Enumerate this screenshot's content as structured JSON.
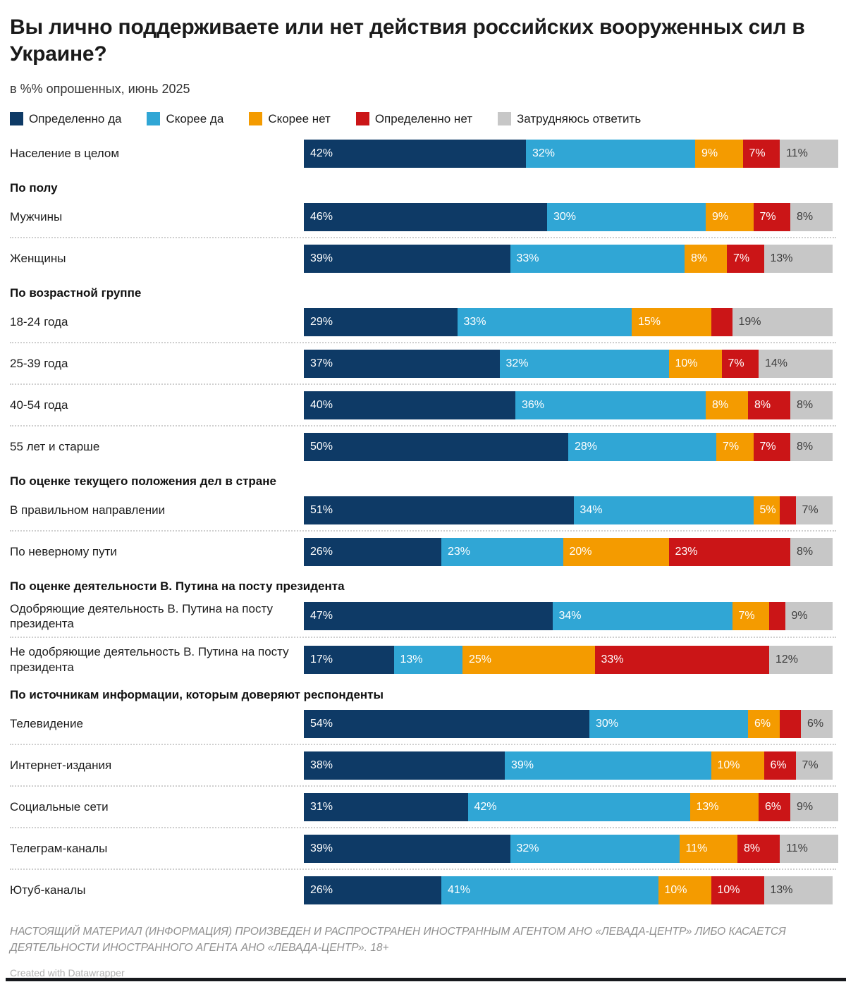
{
  "header": {
    "title": "Вы лично поддерживаете или нет действия российских вооруженных сил в Украине?",
    "subtitle": "в %% опрошенных, июнь 2025"
  },
  "legend": {
    "items": [
      {
        "label": "Определенно да",
        "color": "#0e3a66"
      },
      {
        "label": "Скорее да",
        "color": "#30a6d5"
      },
      {
        "label": "Скорее нет",
        "color": "#f49b00"
      },
      {
        "label": "Определенно нет",
        "color": "#cb1517"
      },
      {
        "label": "Затрудняюсь ответить",
        "color": "#c7c7c7"
      }
    ]
  },
  "chart_data": {
    "type": "bar",
    "variant": "stacked-horizontal",
    "unit": "%",
    "xlim": [
      0,
      100
    ],
    "value_label_min": 5,
    "series": [
      "Определенно да",
      "Скорее да",
      "Скорее нет",
      "Определенно нет",
      "Затрудняюсь ответить"
    ],
    "series_colors": [
      "#0e3a66",
      "#30a6d5",
      "#f49b00",
      "#cb1517",
      "#c7c7c7"
    ],
    "groups": [
      {
        "header": "",
        "rows": [
          {
            "label": "Население в целом",
            "values": [
              42,
              32,
              9,
              7,
              11
            ]
          }
        ]
      },
      {
        "header": "По полу",
        "rows": [
          {
            "label": "Мужчины",
            "values": [
              46,
              30,
              9,
              7,
              8
            ]
          },
          {
            "label": "Женщины",
            "values": [
              39,
              33,
              8,
              7,
              13
            ]
          }
        ]
      },
      {
        "header": "По возрастной группе",
        "rows": [
          {
            "label": "18-24 года",
            "values": [
              29,
              33,
              15,
              4,
              19
            ]
          },
          {
            "label": "25-39 года",
            "values": [
              37,
              32,
              10,
              7,
              14
            ]
          },
          {
            "label": "40-54 года",
            "values": [
              40,
              36,
              8,
              8,
              8
            ]
          },
          {
            "label": "55 лет и старше",
            "values": [
              50,
              28,
              7,
              7,
              8
            ]
          }
        ]
      },
      {
        "header": "По оценке текущего положения дел в стране",
        "rows": [
          {
            "label": "В правильном направлении",
            "values": [
              51,
              34,
              5,
              3,
              7
            ]
          },
          {
            "label": "По неверному пути",
            "values": [
              26,
              23,
              20,
              23,
              8
            ]
          }
        ]
      },
      {
        "header": "По оценке деятельности В. Путина на посту президента",
        "rows": [
          {
            "label": "Одобряющие деятельность В. Путина на посту президента",
            "values": [
              47,
              34,
              7,
              3,
              9
            ]
          },
          {
            "label": "Не одобряющие деятельность В. Путина на посту президента",
            "values": [
              17,
              13,
              25,
              33,
              12
            ]
          }
        ]
      },
      {
        "header": "По источникам информации, которым доверяют респонденты",
        "rows": [
          {
            "label": "Телевидение",
            "values": [
              54,
              30,
              6,
              4,
              6
            ]
          },
          {
            "label": "Интернет-издания",
            "values": [
              38,
              39,
              10,
              6,
              7
            ]
          },
          {
            "label": "Социальные сети",
            "values": [
              31,
              42,
              13,
              6,
              9
            ]
          },
          {
            "label": "Телеграм-каналы",
            "values": [
              39,
              32,
              11,
              8,
              11
            ]
          },
          {
            "label": "Ютуб-каналы",
            "values": [
              26,
              41,
              10,
              10,
              13
            ]
          }
        ]
      }
    ]
  },
  "footer": {
    "disclaimer": "НАСТОЯЩИЙ МАТЕРИАЛ (ИНФОРМАЦИЯ) ПРОИЗВЕДЕН И РАСПРОСТРАНЕН ИНОСТРАННЫМ АГЕНТОМ АНО «ЛЕВАДА-ЦЕНТР» ЛИБО КАСАЕТСЯ ДЕЯТЕЛЬНОСТИ ИНОСТРАННОГО АГЕНТА АНО «ЛЕВАДА-ЦЕНТР». 18+",
    "credit": "Created with Datawrapper"
  }
}
